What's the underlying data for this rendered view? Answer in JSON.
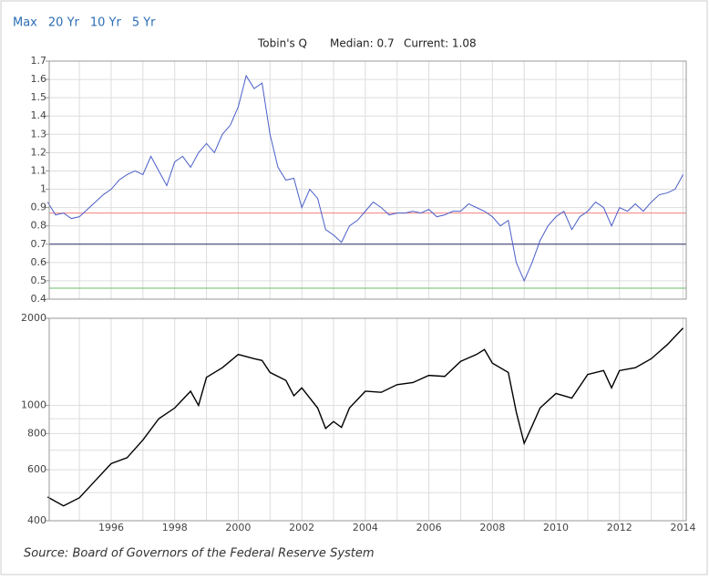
{
  "nav": [
    "Max",
    "20 Yr",
    "10 Yr",
    "5 Yr"
  ],
  "source": "Source: Board of Governors of the Federal Reserve System",
  "chart_data": [
    {
      "type": "line",
      "title": "Tobin's Q",
      "median_label": "Median: 0.7",
      "current_label": "Current: 1.08",
      "x": [
        1994.0,
        1994.25,
        1994.5,
        1994.75,
        1995.0,
        1995.25,
        1995.5,
        1995.75,
        1996.0,
        1996.25,
        1996.5,
        1996.75,
        1997.0,
        1997.25,
        1997.5,
        1997.75,
        1998.0,
        1998.25,
        1998.5,
        1998.75,
        1999.0,
        1999.25,
        1999.5,
        1999.75,
        2000.0,
        2000.25,
        2000.5,
        2000.75,
        2001.0,
        2001.25,
        2001.5,
        2001.75,
        2002.0,
        2002.25,
        2002.5,
        2002.75,
        2003.0,
        2003.25,
        2003.5,
        2003.75,
        2004.0,
        2004.25,
        2004.5,
        2004.75,
        2005.0,
        2005.25,
        2005.5,
        2005.75,
        2006.0,
        2006.25,
        2006.5,
        2006.75,
        2007.0,
        2007.25,
        2007.5,
        2007.75,
        2008.0,
        2008.25,
        2008.5,
        2008.75,
        2009.0,
        2009.25,
        2009.5,
        2009.75,
        2010.0,
        2010.25,
        2010.5,
        2010.75,
        2011.0,
        2011.25,
        2011.5,
        2011.75,
        2012.0,
        2012.25,
        2012.5,
        2012.75,
        2013.0,
        2013.25,
        2013.5,
        2013.75,
        2014.0
      ],
      "values": [
        0.93,
        0.86,
        0.87,
        0.84,
        0.85,
        0.89,
        0.93,
        0.97,
        1.0,
        1.05,
        1.08,
        1.1,
        1.08,
        1.18,
        1.1,
        1.02,
        1.15,
        1.18,
        1.12,
        1.2,
        1.25,
        1.2,
        1.3,
        1.35,
        1.45,
        1.62,
        1.55,
        1.58,
        1.3,
        1.12,
        1.05,
        1.06,
        0.9,
        1.0,
        0.95,
        0.78,
        0.75,
        0.71,
        0.8,
        0.83,
        0.88,
        0.93,
        0.9,
        0.86,
        0.87,
        0.87,
        0.88,
        0.87,
        0.89,
        0.85,
        0.86,
        0.88,
        0.88,
        0.92,
        0.9,
        0.88,
        0.85,
        0.8,
        0.83,
        0.6,
        0.5,
        0.6,
        0.72,
        0.8,
        0.85,
        0.88,
        0.78,
        0.85,
        0.88,
        0.93,
        0.9,
        0.8,
        0.9,
        0.88,
        0.92,
        0.88,
        0.93,
        0.97,
        0.98,
        1.0,
        1.08
      ],
      "color": "#4a5ec8",
      "reference_lines": [
        {
          "value": 0.87,
          "color": "#f08080"
        },
        {
          "value": 0.7,
          "color": "#2b2b6b"
        },
        {
          "value": 0.46,
          "color": "#6abf6a"
        }
      ],
      "xlim": [
        1994.05,
        2014.1
      ],
      "xticks": [
        1996,
        1998,
        2000,
        2002,
        2004,
        2006,
        2008,
        2010,
        2012,
        2014
      ],
      "xminorticks": [
        1995,
        1997,
        1999,
        2001,
        2003,
        2005,
        2007,
        2009,
        2011,
        2013
      ],
      "xtick_labels": false,
      "ylim": [
        0.4,
        1.7
      ],
      "yticks": [
        0.4,
        0.5,
        0.6,
        0.7,
        0.8,
        0.9,
        1,
        1.1,
        1.2,
        1.3,
        1.4,
        1.5,
        1.6,
        1.7
      ],
      "grid": true
    },
    {
      "type": "line",
      "x": [
        1994.0,
        1994.5,
        1995.0,
        1995.5,
        1996.0,
        1996.5,
        1997.0,
        1997.5,
        1998.0,
        1998.5,
        1998.75,
        1999.0,
        1999.5,
        2000.0,
        2000.5,
        2000.75,
        2001.0,
        2001.5,
        2001.75,
        2002.0,
        2002.5,
        2002.75,
        2003.0,
        2003.25,
        2003.5,
        2004.0,
        2004.5,
        2005.0,
        2005.5,
        2006.0,
        2006.5,
        2007.0,
        2007.5,
        2007.75,
        2008.0,
        2008.5,
        2008.75,
        2009.0,
        2009.25,
        2009.5,
        2010.0,
        2010.5,
        2011.0,
        2011.5,
        2011.75,
        2012.0,
        2012.5,
        2013.0,
        2013.5,
        2014.0
      ],
      "values": [
        483,
        450,
        480,
        550,
        630,
        660,
        760,
        900,
        980,
        1120,
        1000,
        1250,
        1350,
        1500,
        1450,
        1430,
        1300,
        1220,
        1080,
        1150,
        980,
        833,
        880,
        840,
        980,
        1120,
        1110,
        1180,
        1200,
        1270,
        1260,
        1420,
        1500,
        1560,
        1400,
        1300,
        950,
        740,
        850,
        980,
        1100,
        1060,
        1280,
        1320,
        1150,
        1320,
        1350,
        1450,
        1620,
        1850
      ],
      "color": "#000000",
      "xlim": [
        1994.05,
        2014.1
      ],
      "xticks": [
        1996,
        1998,
        2000,
        2002,
        2004,
        2006,
        2008,
        2010,
        2012,
        2014
      ],
      "xminorticks": [
        1995,
        1997,
        1999,
        2001,
        2003,
        2005,
        2007,
        2009,
        2011,
        2013
      ],
      "ylim": [
        400,
        2000
      ],
      "yscale": "log",
      "yticks": [
        400,
        600,
        800,
        1000,
        2000
      ],
      "yminorticks": [
        500,
        700,
        900
      ],
      "grid": true
    }
  ]
}
